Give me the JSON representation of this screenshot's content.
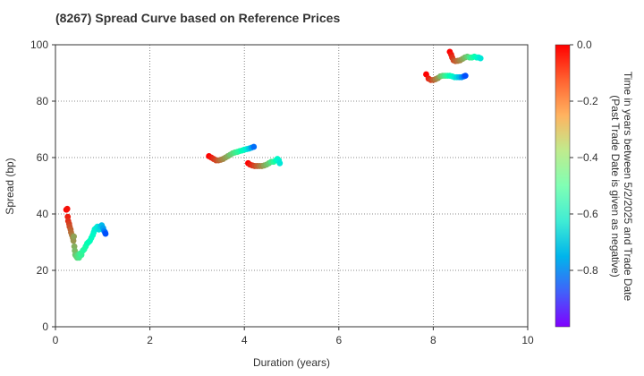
{
  "chart_data": {
    "type": "scatter",
    "title": "(8267)   Spread Curve based on Reference Prices",
    "xlabel": "Duration (years)",
    "ylabel": "Spread (bp)",
    "xlim": [
      0,
      10
    ],
    "ylim": [
      0,
      100
    ],
    "xticks": [
      0,
      2,
      4,
      6,
      8,
      10
    ],
    "yticks": [
      0,
      20,
      40,
      60,
      80,
      100
    ],
    "x_tick_labels": [
      "0",
      "2",
      "4",
      "6",
      "8",
      "10"
    ],
    "y_tick_labels": [
      "0",
      "20",
      "40",
      "60",
      "80",
      "100"
    ],
    "grid": true,
    "colorbar": {
      "label_line1": "Time in years between 5/2/2025 and Trade Date",
      "label_line2": "(Past Trade Date is given as negative)",
      "range": [
        -1.0,
        0.0
      ],
      "ticks": [
        0.0,
        -0.2,
        -0.4,
        -0.6,
        -0.8
      ],
      "tick_labels": [
        "0.0",
        "−0.2",
        "−0.4",
        "−0.6",
        "−0.8"
      ],
      "colormap": "rainbow"
    },
    "series": [
      {
        "points": [
          {
            "x": 0.23,
            "y": 41.5,
            "t": 0.0
          },
          {
            "x": 0.25,
            "y": 41.8,
            "t": -0.02
          },
          {
            "x": 0.26,
            "y": 39.0,
            "t": -0.04
          },
          {
            "x": 0.27,
            "y": 37.5,
            "t": -0.06
          },
          {
            "x": 0.29,
            "y": 36.5,
            "t": -0.08
          },
          {
            "x": 0.3,
            "y": 35.5,
            "t": -0.1
          },
          {
            "x": 0.32,
            "y": 34.5,
            "t": -0.12
          },
          {
            "x": 0.33,
            "y": 33.5,
            "t": -0.14
          },
          {
            "x": 0.35,
            "y": 32.5,
            "t": -0.16
          },
          {
            "x": 0.37,
            "y": 31.5,
            "t": -0.18
          },
          {
            "x": 0.38,
            "y": 30.5,
            "t": -0.2
          },
          {
            "x": 0.39,
            "y": 32.0,
            "t": -0.22
          },
          {
            "x": 0.4,
            "y": 28.5,
            "t": -0.24
          },
          {
            "x": 0.41,
            "y": 27.0,
            "t": -0.26
          },
          {
            "x": 0.42,
            "y": 25.5,
            "t": -0.28
          },
          {
            "x": 0.44,
            "y": 25.0,
            "t": -0.3
          },
          {
            "x": 0.46,
            "y": 24.5,
            "t": -0.32
          },
          {
            "x": 0.48,
            "y": 25.5,
            "t": -0.34
          },
          {
            "x": 0.5,
            "y": 24.5,
            "t": -0.36
          },
          {
            "x": 0.52,
            "y": 26.0,
            "t": -0.38
          },
          {
            "x": 0.55,
            "y": 25.5,
            "t": -0.4
          },
          {
            "x": 0.58,
            "y": 27.0,
            "t": -0.42
          },
          {
            "x": 0.61,
            "y": 27.5,
            "t": -0.44
          },
          {
            "x": 0.64,
            "y": 28.5,
            "t": -0.46
          },
          {
            "x": 0.67,
            "y": 29.5,
            "t": -0.48
          },
          {
            "x": 0.7,
            "y": 30.0,
            "t": -0.5
          },
          {
            "x": 0.73,
            "y": 30.5,
            "t": -0.52
          },
          {
            "x": 0.76,
            "y": 31.5,
            "t": -0.54
          },
          {
            "x": 0.79,
            "y": 32.5,
            "t": -0.56
          },
          {
            "x": 0.81,
            "y": 33.5,
            "t": -0.58
          },
          {
            "x": 0.83,
            "y": 34.5,
            "t": -0.6
          },
          {
            "x": 0.86,
            "y": 35.0,
            "t": -0.62
          },
          {
            "x": 0.89,
            "y": 35.5,
            "t": -0.64
          },
          {
            "x": 0.92,
            "y": 34.5,
            "t": -0.66
          },
          {
            "x": 0.95,
            "y": 35.5,
            "t": -0.7
          },
          {
            "x": 0.98,
            "y": 36.0,
            "t": -0.74
          },
          {
            "x": 1.01,
            "y": 35.0,
            "t": -0.78
          },
          {
            "x": 1.03,
            "y": 34.0,
            "t": -0.82
          },
          {
            "x": 1.05,
            "y": 33.5,
            "t": -0.86
          },
          {
            "x": 1.06,
            "y": 33.0,
            "t": -0.9
          }
        ]
      },
      {
        "points": [
          {
            "x": 3.25,
            "y": 60.5,
            "t": 0.0
          },
          {
            "x": 3.3,
            "y": 60.0,
            "t": -0.03
          },
          {
            "x": 3.35,
            "y": 59.5,
            "t": -0.06
          },
          {
            "x": 3.4,
            "y": 59.0,
            "t": -0.09
          },
          {
            "x": 3.45,
            "y": 59.0,
            "t": -0.12
          },
          {
            "x": 3.5,
            "y": 59.2,
            "t": -0.15
          },
          {
            "x": 3.55,
            "y": 59.5,
            "t": -0.18
          },
          {
            "x": 3.6,
            "y": 60.0,
            "t": -0.21
          },
          {
            "x": 3.65,
            "y": 60.5,
            "t": -0.24
          },
          {
            "x": 3.7,
            "y": 61.0,
            "t": -0.28
          },
          {
            "x": 3.75,
            "y": 61.5,
            "t": -0.32
          },
          {
            "x": 3.8,
            "y": 61.8,
            "t": -0.36
          },
          {
            "x": 3.85,
            "y": 62.0,
            "t": -0.4
          },
          {
            "x": 3.9,
            "y": 62.3,
            "t": -0.44
          },
          {
            "x": 3.95,
            "y": 62.5,
            "t": -0.5
          },
          {
            "x": 4.0,
            "y": 62.8,
            "t": -0.56
          },
          {
            "x": 4.05,
            "y": 63.0,
            "t": -0.62
          },
          {
            "x": 4.1,
            "y": 63.2,
            "t": -0.7
          },
          {
            "x": 4.15,
            "y": 63.5,
            "t": -0.78
          },
          {
            "x": 4.2,
            "y": 63.8,
            "t": -0.86
          }
        ]
      },
      {
        "points": [
          {
            "x": 4.08,
            "y": 58.0,
            "t": 0.0
          },
          {
            "x": 4.12,
            "y": 57.5,
            "t": -0.03
          },
          {
            "x": 4.17,
            "y": 57.2,
            "t": -0.06
          },
          {
            "x": 4.22,
            "y": 57.0,
            "t": -0.09
          },
          {
            "x": 4.27,
            "y": 57.0,
            "t": -0.12
          },
          {
            "x": 4.32,
            "y": 57.0,
            "t": -0.15
          },
          {
            "x": 4.37,
            "y": 57.0,
            "t": -0.18
          },
          {
            "x": 4.42,
            "y": 57.2,
            "t": -0.22
          },
          {
            "x": 4.47,
            "y": 57.5,
            "t": -0.26
          },
          {
            "x": 4.52,
            "y": 58.0,
            "t": -0.3
          },
          {
            "x": 4.57,
            "y": 58.5,
            "t": -0.36
          },
          {
            "x": 4.62,
            "y": 58.5,
            "t": -0.42
          },
          {
            "x": 4.67,
            "y": 59.0,
            "t": -0.5
          },
          {
            "x": 4.7,
            "y": 59.5,
            "t": -0.56
          },
          {
            "x": 4.73,
            "y": 59.0,
            "t": -0.6
          },
          {
            "x": 4.75,
            "y": 58.0,
            "t": -0.64
          }
        ]
      },
      {
        "points": [
          {
            "x": 7.85,
            "y": 89.5,
            "t": 0.0
          },
          {
            "x": 7.9,
            "y": 88.0,
            "t": -0.04
          },
          {
            "x": 7.95,
            "y": 87.5,
            "t": -0.08
          },
          {
            "x": 8.0,
            "y": 87.5,
            "t": -0.12
          },
          {
            "x": 8.05,
            "y": 87.8,
            "t": -0.16
          },
          {
            "x": 8.1,
            "y": 88.2,
            "t": -0.2
          },
          {
            "x": 8.15,
            "y": 88.8,
            "t": -0.26
          },
          {
            "x": 8.2,
            "y": 89.0,
            "t": -0.32
          },
          {
            "x": 8.25,
            "y": 89.0,
            "t": -0.38
          },
          {
            "x": 8.3,
            "y": 89.0,
            "t": -0.44
          },
          {
            "x": 8.35,
            "y": 89.0,
            "t": -0.5
          },
          {
            "x": 8.4,
            "y": 88.8,
            "t": -0.56
          },
          {
            "x": 8.45,
            "y": 88.5,
            "t": -0.62
          },
          {
            "x": 8.5,
            "y": 88.5,
            "t": -0.68
          },
          {
            "x": 8.55,
            "y": 88.5,
            "t": -0.74
          },
          {
            "x": 8.6,
            "y": 88.5,
            "t": -0.8
          },
          {
            "x": 8.65,
            "y": 88.8,
            "t": -0.86
          },
          {
            "x": 8.68,
            "y": 89.0,
            "t": -0.9
          }
        ]
      },
      {
        "points": [
          {
            "x": 8.35,
            "y": 97.5,
            "t": 0.0
          },
          {
            "x": 8.38,
            "y": 96.5,
            "t": -0.03
          },
          {
            "x": 8.4,
            "y": 95.5,
            "t": -0.06
          },
          {
            "x": 8.43,
            "y": 94.5,
            "t": -0.09
          },
          {
            "x": 8.47,
            "y": 94.2,
            "t": -0.12
          },
          {
            "x": 8.52,
            "y": 94.3,
            "t": -0.15
          },
          {
            "x": 8.57,
            "y": 94.5,
            "t": -0.18
          },
          {
            "x": 8.62,
            "y": 95.0,
            "t": -0.22
          },
          {
            "x": 8.67,
            "y": 95.5,
            "t": -0.26
          },
          {
            "x": 8.72,
            "y": 95.8,
            "t": -0.3
          },
          {
            "x": 8.77,
            "y": 95.5,
            "t": -0.36
          },
          {
            "x": 8.82,
            "y": 95.5,
            "t": -0.42
          },
          {
            "x": 8.87,
            "y": 95.8,
            "t": -0.48
          },
          {
            "x": 8.92,
            "y": 95.5,
            "t": -0.54
          },
          {
            "x": 8.96,
            "y": 95.5,
            "t": -0.6
          },
          {
            "x": 9.0,
            "y": 95.2,
            "t": -0.64
          }
        ]
      }
    ]
  }
}
